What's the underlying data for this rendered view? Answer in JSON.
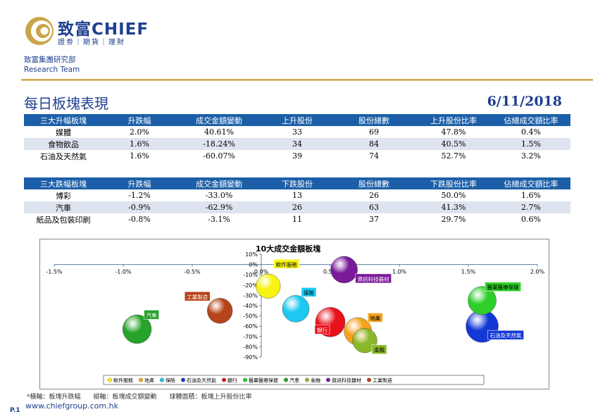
{
  "header": {
    "brand": "致富CHIEF",
    "brand_sub": "證劵｜期貨｜理財",
    "dept_cn": "致富集團研究部",
    "dept_en": "Research Team"
  },
  "title": "每日板塊表現",
  "date": "6/11/2018",
  "colors": {
    "brand_blue": "#1f3f8f",
    "header_blue": "#1c5fa8",
    "gold": "#c9a548",
    "row_alt": "#dde4ef"
  },
  "top_table": {
    "headers": [
      "三大升幅板塊",
      "升跌幅",
      "成交金額變動",
      "上升股份",
      "股份總數",
      "上升股份比率",
      "佔總成交額比率"
    ],
    "rows": [
      [
        "媒體",
        "2.0%",
        "40.61%",
        "33",
        "69",
        "47.8%",
        "0.4%"
      ],
      [
        "食物飲品",
        "1.6%",
        "-18.24%",
        "34",
        "84",
        "40.5%",
        "1.5%"
      ],
      [
        "石油及天然氣",
        "1.6%",
        "-60.07%",
        "39",
        "74",
        "52.7%",
        "3.2%"
      ]
    ]
  },
  "bottom_table": {
    "headers": [
      "三大跌幅板塊",
      "升跌幅",
      "成交金額變動",
      "下跌股份",
      "股份總數",
      "下跌股份比率",
      "佔總成交額比率"
    ],
    "rows": [
      [
        "博彩",
        "-1.2%",
        "-33.0%",
        "13",
        "26",
        "50.0%",
        "1.6%"
      ],
      [
        "汽車",
        "-0.9%",
        "-62.9%",
        "26",
        "63",
        "41.3%",
        "2.7%"
      ],
      [
        "紙品及包裝印刷",
        "-0.8%",
        "-3.1%",
        "11",
        "37",
        "29.7%",
        "0.6%"
      ]
    ]
  },
  "chart_data": {
    "type": "scatter",
    "title": "10大成交金額板塊",
    "x_ticks": [
      "-1.5%",
      "-1.0%",
      "-0.5%",
      "0.0%",
      "0.5%",
      "1.0%",
      "1.5%",
      "2.0%"
    ],
    "y_ticks": [
      "10%",
      "0%",
      "-10%",
      "-20%",
      "-30%",
      "-40%",
      "-50%",
      "-60%",
      "-70%",
      "-80%",
      "-90%"
    ],
    "xlim": [
      -1.5,
      2.0
    ],
    "ylim": [
      -90,
      10
    ],
    "grid": false,
    "legend_position": "bottom",
    "series": [
      {
        "name": "軟件服務",
        "x": 0.05,
        "y": -21,
        "size": 30,
        "color": "#f7f312"
      },
      {
        "name": "地產",
        "x": 0.7,
        "y": -65,
        "size": 38,
        "color": "#f5a31b"
      },
      {
        "name": "保險",
        "x": 0.25,
        "y": -43,
        "size": 36,
        "color": "#1cc7f0"
      },
      {
        "name": "石油及天然氣",
        "x": 1.6,
        "y": -60,
        "size": 52.7,
        "color": "#1438d6"
      },
      {
        "name": "銀行",
        "x": 0.5,
        "y": -56,
        "size": 44,
        "color": "#e8121c"
      },
      {
        "name": "醫藥醫療保健",
        "x": 1.6,
        "y": -35,
        "size": 40,
        "color": "#2ecf2a"
      },
      {
        "name": "汽車",
        "x": -0.9,
        "y": -62.9,
        "size": 41.3,
        "color": "#27a22a"
      },
      {
        "name": "金融",
        "x": 0.75,
        "y": -74,
        "size": 30,
        "color": "#8ab82a"
      },
      {
        "name": "資訊科技器材",
        "x": 0.6,
        "y": -5,
        "size": 36,
        "color": "#7a1a9a"
      },
      {
        "name": "工業製造",
        "x": -0.3,
        "y": -45,
        "size": 32,
        "color": "#b6441a"
      }
    ]
  },
  "footnote": "*橫軸：板塊升跌幅　　縱軸：板塊成交額變動　　球體面積：板塊上升股份比率",
  "website": "www.chiefgroup.com.hk",
  "page": "P.1"
}
